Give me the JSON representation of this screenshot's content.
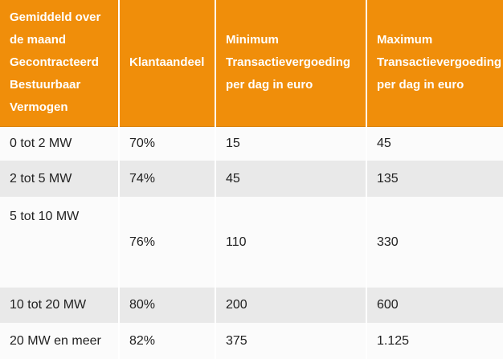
{
  "chart_data": {
    "type": "table",
    "columns": [
      "Gemiddeld over de maand Gecontracteerd Bestuurbaar Vermogen",
      "Klantaandeel",
      "Minimum Transactievergoeding per dag in euro",
      "Maximum Transactievergoeding per dag in euro"
    ],
    "rows": [
      [
        "0 tot 2 MW",
        "70%",
        "15",
        "45"
      ],
      [
        "2 tot 5 MW",
        "74%",
        "45",
        "135"
      ],
      [
        "5 tot 10 MW",
        "76%",
        "110",
        "330"
      ],
      [
        "10 tot 20 MW",
        "80%",
        "200",
        "600"
      ],
      [
        "20 MW en meer",
        "82%",
        "375",
        "1.125"
      ]
    ]
  },
  "colors": {
    "header_background": "#F08E0A",
    "header_text": "#FFFFFF",
    "row_base_background": "#FBFBFB",
    "row_alt_background": "#E9E9E9",
    "body_text": "#212121",
    "column_separator": "#FFFFFF"
  }
}
